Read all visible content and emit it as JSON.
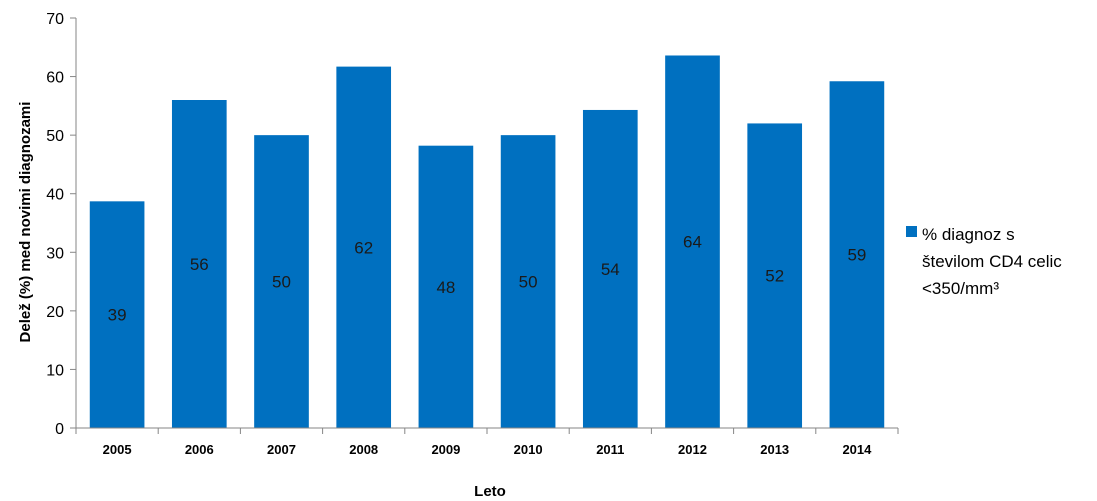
{
  "chart_data": {
    "type": "bar",
    "categories": [
      "2005",
      "2006",
      "2007",
      "2008",
      "2009",
      "2010",
      "2011",
      "2012",
      "2013",
      "2014"
    ],
    "series": [
      {
        "name": "% diagnoz s številom CD4 celic <350/mm³",
        "legend_lines": [
          "% diagnoz s",
          "številom CD4 celic",
          "<350/mm³"
        ],
        "values": [
          38.7,
          56.0,
          50.0,
          61.7,
          48.2,
          50.0,
          54.3,
          63.6,
          52.0,
          59.2
        ],
        "data_labels": [
          "39",
          "56",
          "50",
          "62",
          "48",
          "50",
          "54",
          "64",
          "52",
          "59"
        ],
        "color": "#0070C0"
      }
    ],
    "title": "",
    "xlabel": "Leto",
    "ylabel": "Delež  (%) med novimi diagnozami",
    "ylim": [
      0,
      70
    ],
    "yticks": [
      0,
      10,
      20,
      30,
      40,
      50,
      60,
      70
    ],
    "grid": false,
    "legend_position": "right"
  }
}
